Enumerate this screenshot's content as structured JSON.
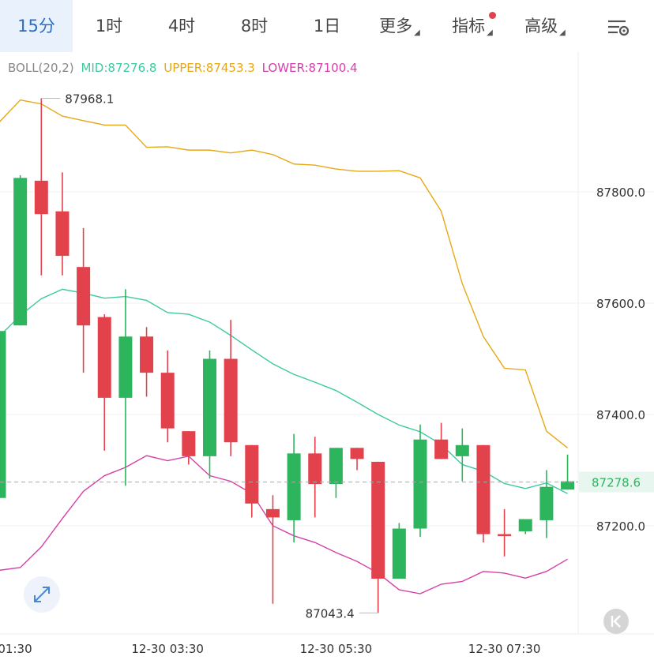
{
  "tabs": [
    {
      "label": "15分",
      "active": true
    },
    {
      "label": "1时"
    },
    {
      "label": "4时"
    },
    {
      "label": "8时"
    },
    {
      "label": "1日"
    },
    {
      "label": "更多",
      "dropdown": true
    },
    {
      "label": "指标",
      "dropdown": true,
      "dot": true
    },
    {
      "label": "高级",
      "dropdown": true
    }
  ],
  "settings_icon": "chart-settings-icon",
  "legend": {
    "name": "BOLL(20,2)",
    "mid": "MID:87276.8",
    "upper": "UPPER:87453.3",
    "lower": "LOWER:87100.4"
  },
  "colors": {
    "up": "#2db55d",
    "down": "#e2424c",
    "mid": "#3ec9a0",
    "upper": "#e6a817",
    "lower": "#d63fa8",
    "accent": "#2a6cc4"
  },
  "chart_data": {
    "type": "candlestick",
    "indicator": "BOLL(20,2)",
    "y_ticks": [
      "87800.0",
      "87600.0",
      "87400.0",
      "87200.0"
    ],
    "x_ticks": [
      "01:30",
      "12-30 03:30",
      "12-30 05:30",
      "12-30 07:30"
    ],
    "high_label": "87968.1",
    "low_label": "87043.4",
    "last_price": "87278.6",
    "candles": [
      {
        "o": 87250,
        "c": 87550,
        "h": 87550,
        "l": 87250
      },
      {
        "o": 87560,
        "c": 87825,
        "h": 87830,
        "l": 87560
      },
      {
        "o": 87820,
        "c": 87760,
        "h": 87968.1,
        "l": 87650
      },
      {
        "o": 87765,
        "c": 87685,
        "h": 87835,
        "l": 87650
      },
      {
        "o": 87665,
        "c": 87560,
        "h": 87735,
        "l": 87475
      },
      {
        "o": 87575,
        "c": 87430,
        "h": 87580,
        "l": 87335
      },
      {
        "o": 87430,
        "c": 87540,
        "h": 87625,
        "l": 87272
      },
      {
        "o": 87540,
        "c": 87475,
        "h": 87557,
        "l": 87432
      },
      {
        "o": 87475,
        "c": 87375,
        "h": 87515,
        "l": 87350
      },
      {
        "o": 87370,
        "c": 87325,
        "h": 87370,
        "l": 87310
      },
      {
        "o": 87325,
        "c": 87500,
        "h": 87515,
        "l": 87285
      },
      {
        "o": 87500,
        "c": 87350,
        "h": 87570,
        "l": 87325
      },
      {
        "o": 87345,
        "c": 87240,
        "h": 87345,
        "l": 87215
      },
      {
        "o": 87230,
        "c": 87215,
        "h": 87255,
        "l": 87060
      },
      {
        "o": 87210,
        "c": 87330,
        "h": 87365,
        "l": 87170
      },
      {
        "o": 87330,
        "c": 87275,
        "h": 87360,
        "l": 87215
      },
      {
        "o": 87275,
        "c": 87340,
        "h": 87340,
        "l": 87250
      },
      {
        "o": 87340,
        "c": 87320,
        "h": 87340,
        "l": 87300
      },
      {
        "o": 87315,
        "c": 87105,
        "h": 87315,
        "l": 87043.4
      },
      {
        "o": 87105,
        "c": 87195,
        "h": 87205,
        "l": 87105
      },
      {
        "o": 87195,
        "c": 87355,
        "h": 87382,
        "l": 87180
      },
      {
        "o": 87355,
        "c": 87320,
        "h": 87385,
        "l": 87320
      },
      {
        "o": 87325,
        "c": 87345,
        "h": 87375,
        "l": 87280
      },
      {
        "o": 87345,
        "c": 87185,
        "h": 87345,
        "l": 87170
      },
      {
        "o": 87185,
        "c": 87183,
        "h": 87230,
        "l": 87145
      },
      {
        "o": 87190,
        "c": 87212,
        "h": 87212,
        "l": 87185
      },
      {
        "o": 87210,
        "c": 87270,
        "h": 87300,
        "l": 87178
      },
      {
        "o": 87265,
        "c": 87280,
        "h": 87328,
        "l": 87265
      }
    ],
    "boll_upper": [
      87925,
      87965,
      87958,
      87936,
      87928,
      87920,
      87920,
      87880,
      87881,
      87875,
      87875,
      87870,
      87875,
      87867,
      87850,
      87848,
      87841,
      87837,
      87837,
      87838,
      87825,
      87765,
      87635,
      87540,
      87483,
      87480,
      87370,
      87340
    ],
    "boll_mid": [
      87540,
      87578,
      87608,
      87625,
      87618,
      87609,
      87612,
      87605,
      87583,
      87580,
      87566,
      87542,
      87516,
      87491,
      87472,
      87458,
      87443,
      87422,
      87400,
      87381,
      87369,
      87346,
      87310,
      87298,
      87276,
      87267,
      87277,
      87258
    ],
    "boll_lower": [
      87120,
      87125,
      87162,
      87213,
      87262,
      87290,
      87305,
      87326,
      87317,
      87325,
      87290,
      87280,
      87258,
      87200,
      87182,
      87170,
      87152,
      87136,
      87115,
      87085,
      87078,
      87095,
      87100,
      87118,
      87115,
      87106,
      87118,
      87140
    ]
  }
}
